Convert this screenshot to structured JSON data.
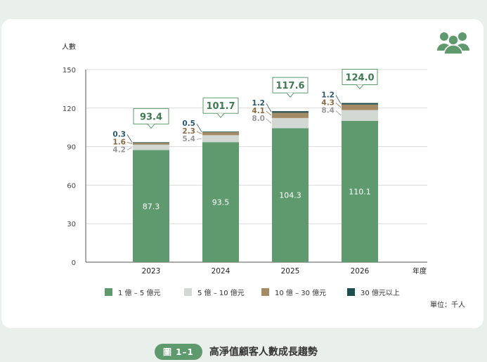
{
  "chart_data": {
    "type": "bar",
    "stacked": true,
    "ylabel": "人數",
    "xlabel": "年度",
    "unit_note": "單位：千人",
    "ylim": [
      0,
      150
    ],
    "yticks": [
      0,
      30,
      60,
      90,
      120,
      150
    ],
    "grid": true,
    "legend_position": "bottom",
    "categories": [
      "2023",
      "2024",
      "2025",
      "2026"
    ],
    "totals": [
      "93.4",
      "101.7",
      "117.6",
      "124.0"
    ],
    "series": [
      {
        "name": "1 億 – 5 億元",
        "values": [
          87.3,
          93.5,
          104.3,
          110.1
        ],
        "labels": [
          "87.3",
          "93.5",
          "104.3",
          "110.1"
        ],
        "color": "#5e9a6e"
      },
      {
        "name": "5 億 – 10 億元",
        "values": [
          4.2,
          5.4,
          8.0,
          8.4
        ],
        "labels": [
          "4.2",
          "5.4",
          "8.0",
          "8.4"
        ],
        "color": "#d3d8d4"
      },
      {
        "name": "10 億 – 30 億元",
        "values": [
          1.6,
          2.3,
          4.1,
          4.3
        ],
        "labels": [
          "1.6",
          "2.3",
          "4.1",
          "4.3"
        ],
        "color": "#a58a66"
      },
      {
        "name": "30 億元以上",
        "values": [
          0.3,
          0.5,
          1.2,
          1.2
        ],
        "labels": [
          "0.3",
          "0.5",
          "1.2",
          "1.2"
        ],
        "color": "#1e4e4e"
      }
    ]
  },
  "icon": "people-group-icon",
  "caption": {
    "badge": "圖 1–1",
    "title": "高淨值顧客人數成長趨勢"
  }
}
